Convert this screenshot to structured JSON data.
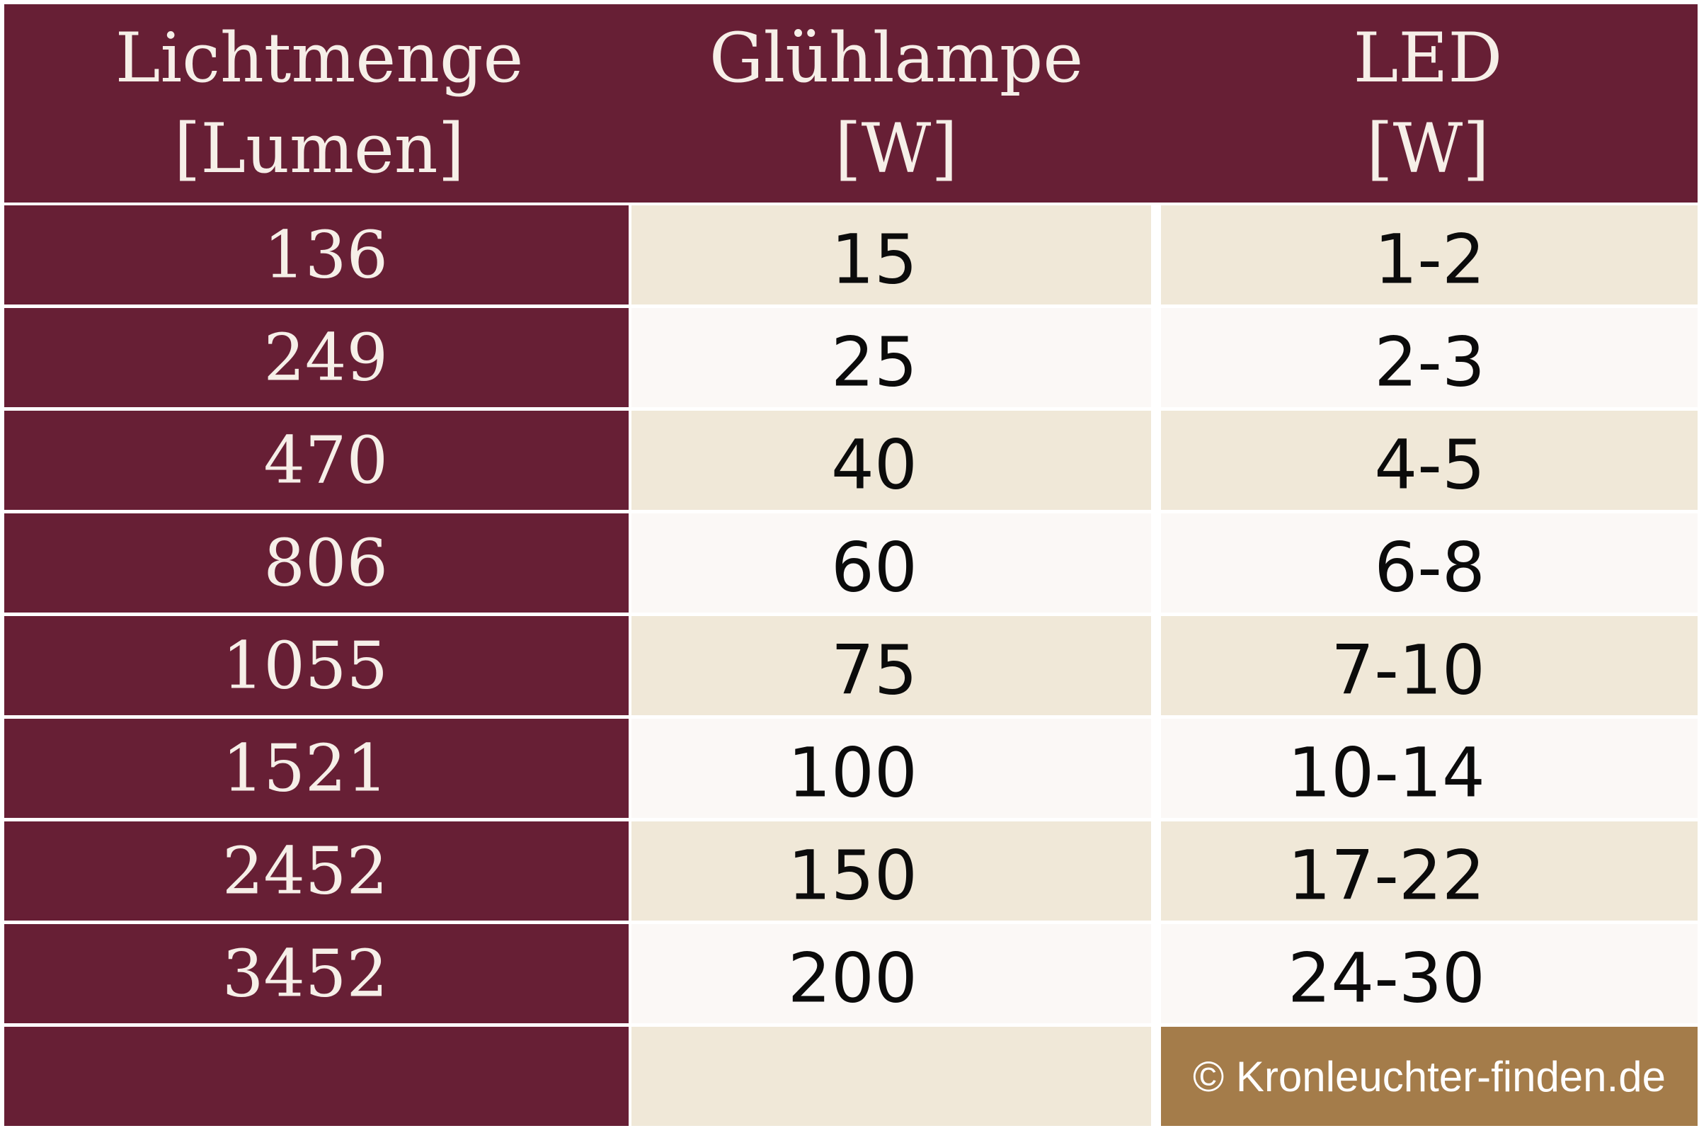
{
  "header": {
    "col1": [
      "Lichtmenge",
      "[Lumen]"
    ],
    "col2": [
      "Glühlampe",
      "[W]"
    ],
    "col3": [
      "LED",
      "[W]"
    ]
  },
  "rows": [
    {
      "lumen": "136",
      "gluehlampe": "15",
      "led": "1-2"
    },
    {
      "lumen": "249",
      "gluehlampe": "25",
      "led": "2-3"
    },
    {
      "lumen": "470",
      "gluehlampe": "40",
      "led": "4-5"
    },
    {
      "lumen": "806",
      "gluehlampe": "60",
      "led": "6-8"
    },
    {
      "lumen": "1055",
      "gluehlampe": "75",
      "led": "7-10"
    },
    {
      "lumen": "1521",
      "gluehlampe": "100",
      "led": "10-14"
    },
    {
      "lumen": "2452",
      "gluehlampe": "150",
      "led": "17-22"
    },
    {
      "lumen": "3452",
      "gluehlampe": "200",
      "led": "24-30"
    }
  ],
  "footer": {
    "copyright": "© Kronleuchter-finden.de"
  },
  "colors": {
    "header": "#671f35",
    "row_a": "#f0e8d8",
    "row_b": "#fbf8f6",
    "copyright_bg": "#a47c4a"
  }
}
